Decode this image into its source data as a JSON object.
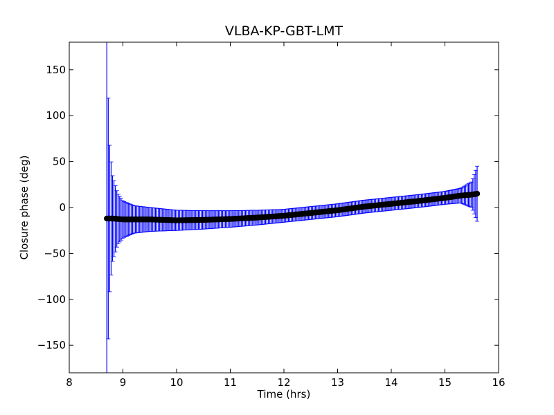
{
  "chart_data": {
    "type": "scatter",
    "title": "VLBA-KP-GBT-LMT",
    "xlabel": "Time (hrs)",
    "ylabel": "Closure phase (deg)",
    "xlim": [
      8,
      16
    ],
    "ylim": [
      -180,
      180
    ],
    "xticks": [
      8,
      9,
      10,
      11,
      12,
      13,
      14,
      15,
      16
    ],
    "xtick_labels": [
      "8",
      "9",
      "10",
      "11",
      "12",
      "13",
      "14",
      "15",
      "16"
    ],
    "yticks": [
      -150,
      -100,
      -50,
      0,
      50,
      100,
      150
    ],
    "ytick_labels": [
      "−150",
      "−100",
      "−50",
      "0",
      "50",
      "100",
      "150"
    ],
    "grid": false,
    "series": [
      {
        "marker_color": "#000000",
        "errorbar_color": "#0000ff",
        "x": [
          8.7,
          8.72,
          8.75,
          8.8,
          8.9,
          9.0,
          9.2,
          9.5,
          10.0,
          10.5,
          11.0,
          11.5,
          12.0,
          12.5,
          13.0,
          13.5,
          14.0,
          14.5,
          15.0,
          15.3,
          15.5,
          15.6
        ],
        "y": [
          -12,
          -12,
          -12,
          -12,
          -12.5,
          -13,
          -13,
          -13,
          -14,
          -13.5,
          -12.5,
          -11,
          -9,
          -6,
          -3,
          1,
          4,
          7,
          10.5,
          13,
          14,
          15
        ],
        "err": [
          192,
          145,
          82,
          48,
          28,
          20,
          15,
          13,
          11,
          10,
          9,
          8,
          7,
          7,
          7,
          7,
          7,
          7,
          7,
          8,
          14,
          30
        ]
      }
    ]
  }
}
